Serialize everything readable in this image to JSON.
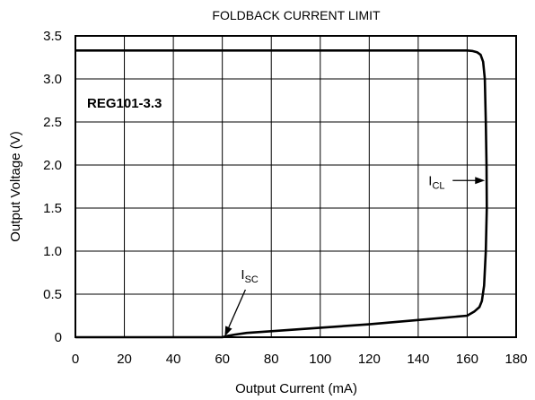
{
  "chart_data": {
    "type": "line",
    "title": "FOLDBACK CURRENT LIMIT",
    "xlabel": "Output Current (mA)",
    "ylabel": "Output Voltage (V)",
    "xlim": [
      0,
      180
    ],
    "ylim": [
      0,
      3.5
    ],
    "x_ticks": [
      0,
      20,
      40,
      60,
      80,
      100,
      120,
      140,
      160,
      180
    ],
    "y_ticks": [
      0,
      0.5,
      1.0,
      1.5,
      2.0,
      2.5,
      3.0,
      3.5
    ],
    "x_tick_labels": [
      "0",
      "20",
      "40",
      "60",
      "80",
      "100",
      "120",
      "140",
      "160",
      "180"
    ],
    "y_tick_labels": [
      "0",
      "0.5",
      "1.0",
      "1.5",
      "2.0",
      "2.5",
      "3.0",
      "3.5"
    ],
    "grid": true,
    "device_label": "REG101-3.3",
    "series": [
      {
        "x": [
          0,
          100,
          150,
          160,
          162,
          164,
          165.5,
          166.5,
          167.2,
          167.6,
          167.9,
          168,
          167.6,
          166.9,
          166,
          165,
          163,
          160,
          140,
          120,
          100,
          80,
          70,
          65,
          62,
          61,
          60,
          0
        ],
        "y": [
          3.33,
          3.33,
          3.33,
          3.33,
          3.325,
          3.31,
          3.28,
          3.2,
          3.0,
          2.5,
          2.0,
          1.5,
          1.0,
          0.6,
          0.42,
          0.35,
          0.3,
          0.25,
          0.2,
          0.15,
          0.11,
          0.07,
          0.05,
          0.03,
          0.015,
          0.007,
          0,
          0
        ]
      }
    ],
    "annotations": [
      {
        "main": "I",
        "sub": "CL",
        "target_x": 168,
        "target_y": 1.82
      },
      {
        "main": "I",
        "sub": "SC",
        "target_x": 61,
        "target_y": 0
      }
    ]
  }
}
